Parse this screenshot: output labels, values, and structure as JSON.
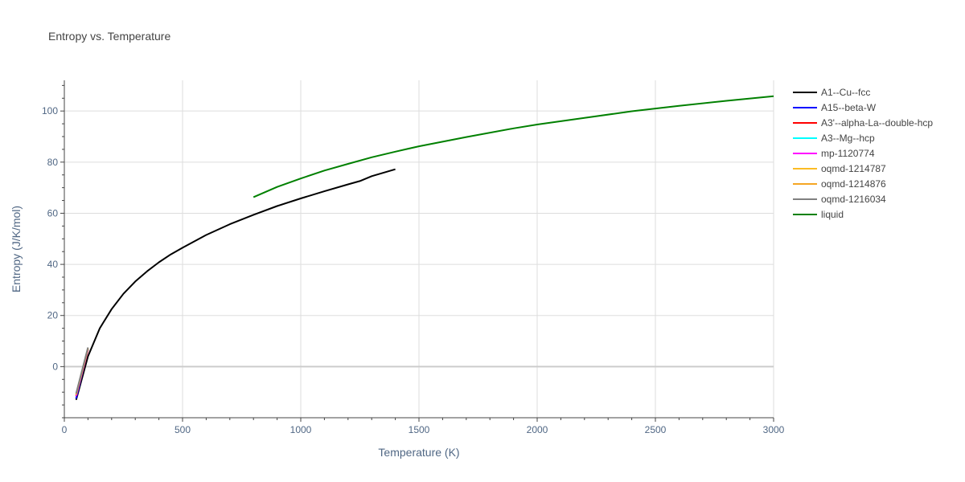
{
  "chart_data": {
    "type": "line",
    "title": "Entropy vs. Temperature",
    "xlabel": "Temperature (K)",
    "ylabel": "Entropy (J/K/mol)",
    "xlim": [
      0,
      3000
    ],
    "ylim": [
      -20,
      112
    ],
    "x_ticks": [
      0,
      500,
      1000,
      1500,
      2000,
      2500,
      3000
    ],
    "y_ticks": [
      0,
      20,
      40,
      60,
      80,
      100
    ],
    "grid": true,
    "legend_position": "right",
    "series": [
      {
        "name": "A1--Cu--fcc",
        "color": "#000000",
        "x": [
          50,
          100,
          150,
          200,
          250,
          300,
          350,
          400,
          450,
          500,
          600,
          700,
          800,
          900,
          1000,
          1100,
          1200,
          1250,
          1300,
          1400
        ],
        "y": [
          -13,
          4,
          15,
          22.5,
          28.5,
          33.3,
          37.3,
          40.8,
          43.9,
          46.5,
          51.5,
          55.7,
          59.4,
          62.8,
          65.8,
          68.6,
          71.3,
          72.6,
          74.5,
          77.2
        ]
      },
      {
        "name": "A15--beta-W",
        "color": "#0000ff",
        "x": [
          50,
          100
        ],
        "y": [
          -12.5,
          6.8
        ]
      },
      {
        "name": "A3'--alpha-La--double-hcp",
        "color": "#ff0000",
        "x": [
          50,
          100
        ],
        "y": [
          -11.5,
          6.5
        ]
      },
      {
        "name": "A3--Mg--hcp",
        "color": "#00ffff",
        "x": [
          50,
          100
        ],
        "y": [
          -11.3,
          6.7
        ]
      },
      {
        "name": "mp-1120774",
        "color": "#ff00ff",
        "x": [
          50,
          100
        ],
        "y": [
          -11.4,
          6.6
        ]
      },
      {
        "name": "oqmd-1214787",
        "color": "#fbbc24",
        "x": [
          50,
          100
        ],
        "y": [
          -11,
          7
        ]
      },
      {
        "name": "oqmd-1214876",
        "color": "#f5a623",
        "x": [
          50,
          100
        ],
        "y": [
          -10.8,
          7.2
        ]
      },
      {
        "name": "oqmd-1216034",
        "color": "#808080",
        "x": [
          50,
          100
        ],
        "y": [
          -10.5,
          7.5
        ]
      },
      {
        "name": "liquid",
        "color": "#008000",
        "x": [
          800,
          900,
          1000,
          1100,
          1200,
          1300,
          1400,
          1500,
          1700,
          1900,
          2000,
          2200,
          2400,
          2600,
          2800,
          3000
        ],
        "y": [
          66.3,
          70.3,
          73.6,
          76.7,
          79.3,
          81.9,
          84.1,
          86.2,
          89.8,
          93.2,
          94.7,
          97.3,
          99.9,
          102.0,
          104.0,
          105.8
        ]
      }
    ]
  }
}
